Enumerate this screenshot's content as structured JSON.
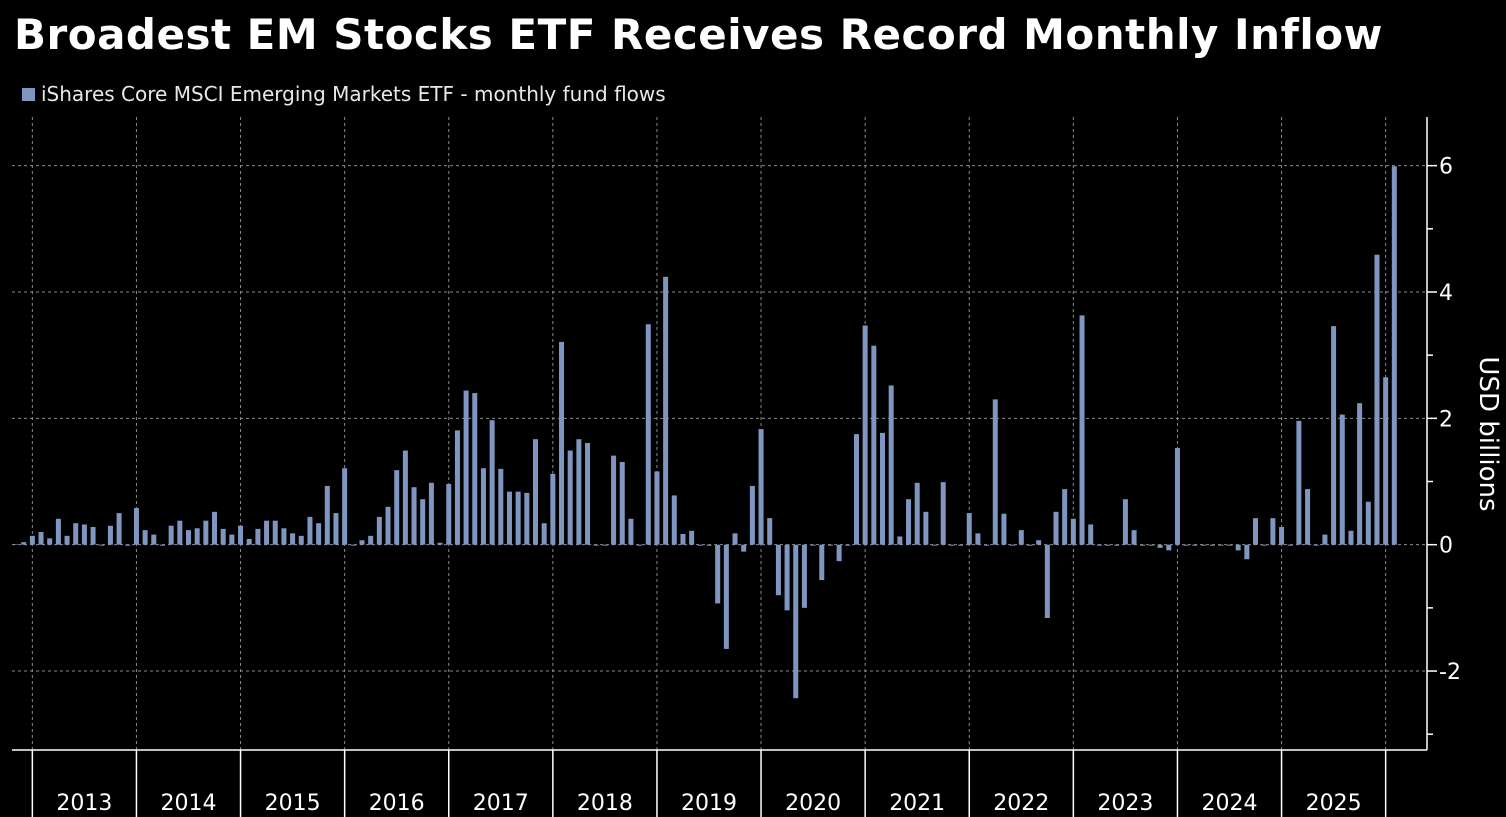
{
  "chart_data": {
    "type": "bar",
    "title": "Broadest EM Stocks ETF Receives Record Monthly Inflow",
    "legend": "iShares Core MSCI Emerging Markets ETF - monthly fund flows",
    "legend_placement": "top-left",
    "ylabel": "USD billions",
    "xlabel": "",
    "ylim": [
      -3.25,
      6.77
    ],
    "yticks": [
      -2,
      0,
      2,
      4,
      6
    ],
    "ytick_labels": [
      "-2",
      "0",
      "2",
      "4",
      "6"
    ],
    "x_start": "2012-11",
    "frequency": "monthly",
    "xtick_labels": [
      "2013",
      "2014",
      "2015",
      "2016",
      "2017",
      "2018",
      "2019",
      "2020",
      "2021",
      "2022",
      "2023",
      "2024",
      "2025"
    ],
    "grid": true,
    "bar_color": "#7f97c0",
    "values": [
      0.01,
      0.04,
      0.14,
      0.2,
      0.1,
      0.41,
      0.14,
      0.34,
      0.32,
      0.28,
      0,
      0.3,
      0.5,
      0,
      0.58,
      0.23,
      0.16,
      0,
      0.3,
      0.38,
      0.23,
      0.26,
      0.38,
      0.52,
      0.25,
      0.16,
      0.3,
      0.09,
      0.25,
      0.38,
      0.38,
      0.26,
      0.18,
      0.14,
      0.44,
      0.34,
      0.93,
      0.5,
      1.21,
      0,
      0.07,
      0.14,
      0.44,
      0.6,
      1.18,
      1.49,
      0.91,
      0.72,
      0.98,
      0.03,
      0.96,
      1.81,
      2.44,
      2.4,
      1.21,
      1.97,
      1.2,
      0.84,
      0.84,
      0.82,
      1.67,
      0.34,
      1.12,
      3.21,
      1.49,
      1.67,
      1.61,
      0,
      0,
      1.41,
      1.31,
      0.41,
      0,
      3.49,
      1.16,
      4.24,
      0.78,
      0.17,
      0.22,
      0,
      0,
      -0.93,
      -1.65,
      0.18,
      -0.11,
      0.93,
      1.83,
      0.42,
      -0.8,
      -1.04,
      -2.43,
      -1.0,
      0,
      -0.56,
      0,
      -0.26,
      0,
      1.75,
      3.47,
      3.15,
      1.77,
      2.52,
      0.13,
      0.72,
      0.98,
      0.52,
      0,
      0.99,
      0,
      0,
      0.5,
      0.18,
      0,
      2.3,
      0.49,
      0,
      0.23,
      0,
      0.07,
      -1.16,
      0.52,
      0.88,
      0.41,
      3.63,
      0.32,
      0,
      0,
      0,
      0.72,
      0.23,
      0,
      0,
      -0.05,
      -0.09,
      1.53,
      0,
      0,
      0,
      0,
      0,
      0,
      -0.09,
      -0.23,
      0.42,
      0,
      0.42,
      0.28,
      0,
      1.96,
      0.88,
      0,
      0.16,
      3.46,
      2.06,
      0.22,
      2.24,
      0.68,
      4.59,
      2.65,
      5.99
    ]
  }
}
